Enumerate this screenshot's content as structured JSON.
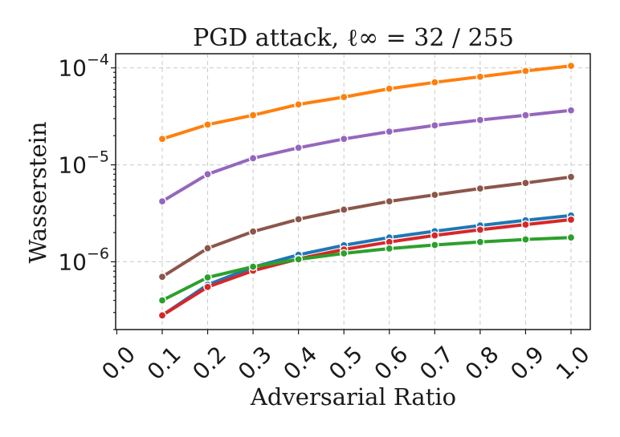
{
  "chart_data": {
    "type": "line",
    "title": "PGD attack, ℓ∞ = 32 / 255",
    "xlabel": "Adversarial Ratio",
    "ylabel": "Wasserstein",
    "x_ticks": [
      "0.0",
      "0.1",
      "0.2",
      "0.3",
      "0.4",
      "0.5",
      "0.6",
      "0.7",
      "0.8",
      "0.9",
      "1.0"
    ],
    "xlim": [
      0.0,
      1.0
    ],
    "y_scale": "log",
    "ylim": [
      2e-07,
      0.00014
    ],
    "y_ticks": [
      {
        "base": "10",
        "exp": "−6",
        "value": 1e-06
      },
      {
        "base": "10",
        "exp": "−5",
        "value": 1e-05
      },
      {
        "base": "10",
        "exp": "−4",
        "value": 0.0001
      }
    ],
    "grid": true,
    "legend": "none",
    "x": [
      0.1,
      0.2,
      0.3,
      0.4,
      0.5,
      0.6,
      0.7,
      0.8,
      0.9,
      1.0
    ],
    "series": [
      {
        "color": "#ff7f0e",
        "values": [
          1.85e-05,
          2.6e-05,
          3.25e-05,
          4.2e-05,
          5e-05,
          6.1e-05,
          7.1e-05,
          8.1e-05,
          9.3e-05,
          0.000105
        ]
      },
      {
        "color": "#9467bd",
        "values": [
          4.2e-06,
          8e-06,
          1.17e-05,
          1.5e-05,
          1.85e-05,
          2.2e-05,
          2.55e-05,
          2.9e-05,
          3.25e-05,
          3.65e-05
        ]
      },
      {
        "color": "#8c564b",
        "values": [
          7e-07,
          1.38e-06,
          2.05e-06,
          2.75e-06,
          3.45e-06,
          4.2e-06,
          4.9e-06,
          5.7e-06,
          6.5e-06,
          7.5e-06
        ]
      },
      {
        "color": "#1f77b4",
        "values": [
          2.8e-07,
          5.8e-07,
          8.8e-07,
          1.18e-06,
          1.48e-06,
          1.78e-06,
          2.07e-06,
          2.37e-06,
          2.68e-06,
          3e-06
        ]
      },
      {
        "color": "#d62728",
        "values": [
          2.8e-07,
          5.5e-07,
          8.1e-07,
          1.07e-06,
          1.34e-06,
          1.6e-06,
          1.87e-06,
          2.14e-06,
          2.42e-06,
          2.72e-06
        ]
      },
      {
        "color": "#2ca02c",
        "values": [
          4e-07,
          6.9e-07,
          8.9e-07,
          1.06e-06,
          1.22e-06,
          1.37e-06,
          1.49e-06,
          1.6e-06,
          1.7e-06,
          1.78e-06
        ]
      }
    ]
  }
}
